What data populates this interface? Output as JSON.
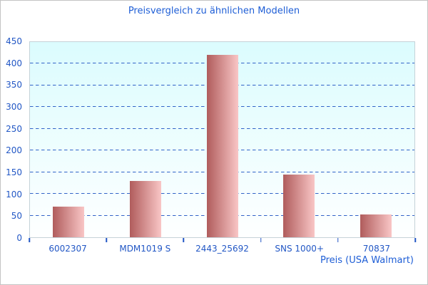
{
  "window": {
    "background": "#ffffff",
    "border_color": "#c4c4c4"
  },
  "chart_data": {
    "type": "bar",
    "title": "Preisvergleich zu ähnlichen Modellen",
    "categories": [
      "6002307",
      "MDM1019 S",
      "2443_25692",
      "SNS 1000+",
      "70837"
    ],
    "values": [
      71,
      130,
      420,
      144,
      53
    ],
    "xlabel": "Preis (USA Walmart)",
    "ylabel": "",
    "ylim": [
      0,
      450
    ],
    "yticks": [
      0,
      50,
      100,
      150,
      200,
      250,
      300,
      350,
      400,
      450
    ],
    "gridlines": [
      50,
      100,
      150,
      200,
      250,
      300,
      350,
      400
    ],
    "grid_style": "dashed",
    "legend": null,
    "colors": {
      "title_text": "#1e5ed6",
      "axis_text": "#2257c5",
      "gridline": "#3263c8",
      "tick": "#2257c5",
      "plot_border": "#c5d2d8",
      "plot_bg_top": "#dbfcfe",
      "plot_bg_bottom": "#feffff",
      "bar_gradient_left": "#b05c5c",
      "bar_gradient_right": "#f9c6c6",
      "outer_border": "#c4c4c4"
    }
  }
}
